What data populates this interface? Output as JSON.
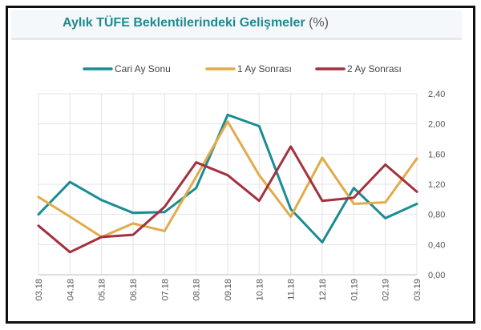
{
  "page": {
    "title": "Aylık TÜFE Beklentilerindeki Gelişmeler",
    "title_unit": "(%)"
  },
  "chart_data": {
    "type": "line",
    "title": "Aylık TÜFE Beklentilerindeki Gelişmeler (%)",
    "categories": [
      "03.18",
      "04.18",
      "05.18",
      "06.18",
      "07.18",
      "08.18",
      "09.18",
      "10.18",
      "11.18",
      "12.18",
      "01.19",
      "02.19",
      "03.19"
    ],
    "ylim": [
      0,
      2.4
    ],
    "yticks": [
      0,
      0.4,
      0.8,
      1.2,
      1.6,
      2.0,
      2.4
    ],
    "ytick_labels": [
      "0,00",
      "0,40",
      "0,80",
      "1,20",
      "1,60",
      "2,00",
      "2,40"
    ],
    "y_axis_side": "right",
    "grid": true,
    "legend_position": "top",
    "series": [
      {
        "name": "Cari Ay Sonu",
        "color": "#1a8c93",
        "values": [
          0.8,
          1.23,
          0.99,
          0.82,
          0.83,
          1.15,
          2.12,
          1.97,
          0.87,
          0.43,
          1.15,
          0.75,
          0.94
        ]
      },
      {
        "name": "1 Ay Sonrası",
        "color": "#e2ab4a",
        "values": [
          1.03,
          0.77,
          0.5,
          0.68,
          0.58,
          1.3,
          2.03,
          1.32,
          0.77,
          1.55,
          0.94,
          0.96,
          1.54
        ]
      },
      {
        "name": "2 Ay Sonrası",
        "color": "#a3313f",
        "values": [
          0.65,
          0.3,
          0.5,
          0.53,
          0.9,
          1.49,
          1.32,
          0.98,
          1.7,
          0.98,
          1.02,
          1.46,
          1.1
        ]
      }
    ]
  }
}
